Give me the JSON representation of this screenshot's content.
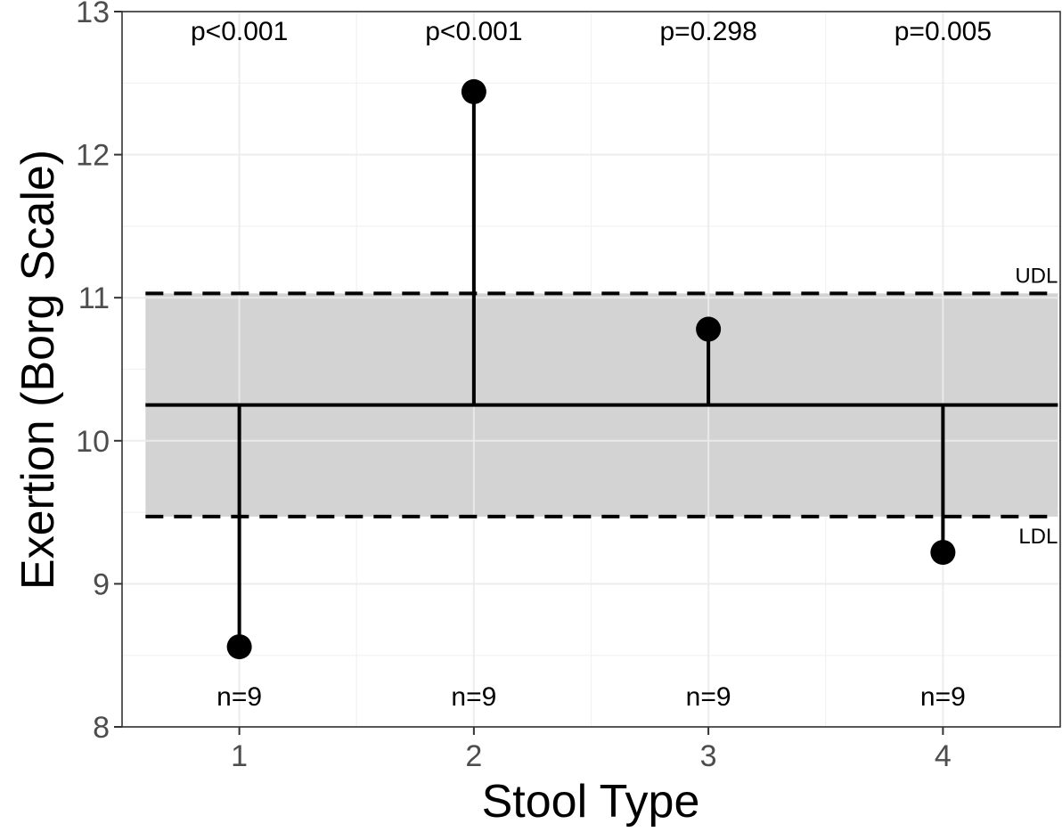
{
  "chart_data": {
    "type": "scatter",
    "subtype": "analysis-of-means lollipop",
    "xlabel": "Stool Type",
    "ylabel": "Exertion (Borg Scale)",
    "categories": [
      "1",
      "2",
      "3",
      "4"
    ],
    "x_ticks": [
      "1",
      "2",
      "3",
      "4"
    ],
    "y_ticks": [
      8,
      9,
      10,
      11,
      12,
      13
    ],
    "xlim": [
      0.5,
      4.5
    ],
    "ylim": [
      8,
      13
    ],
    "grid": true,
    "center_line": 10.25,
    "decision_limits": {
      "upper": {
        "label": "UDL",
        "value": 11.03
      },
      "lower": {
        "label": "LDL",
        "value": 9.47
      }
    },
    "shaded_band_color": "#d3d3d3",
    "series": [
      {
        "points": [
          {
            "x": 1,
            "y": 8.56,
            "p_label": "p<0.001",
            "n_label": "n=9"
          },
          {
            "x": 2,
            "y": 12.44,
            "p_label": "p<0.001",
            "n_label": "n=9"
          },
          {
            "x": 3,
            "y": 10.78,
            "p_label": "p=0.298",
            "n_label": "n=9"
          },
          {
            "x": 4,
            "y": 9.22,
            "p_label": "p=0.005",
            "n_label": "n=9"
          }
        ]
      }
    ],
    "p_label_y": 12.8,
    "n_label_y": 8.15
  }
}
